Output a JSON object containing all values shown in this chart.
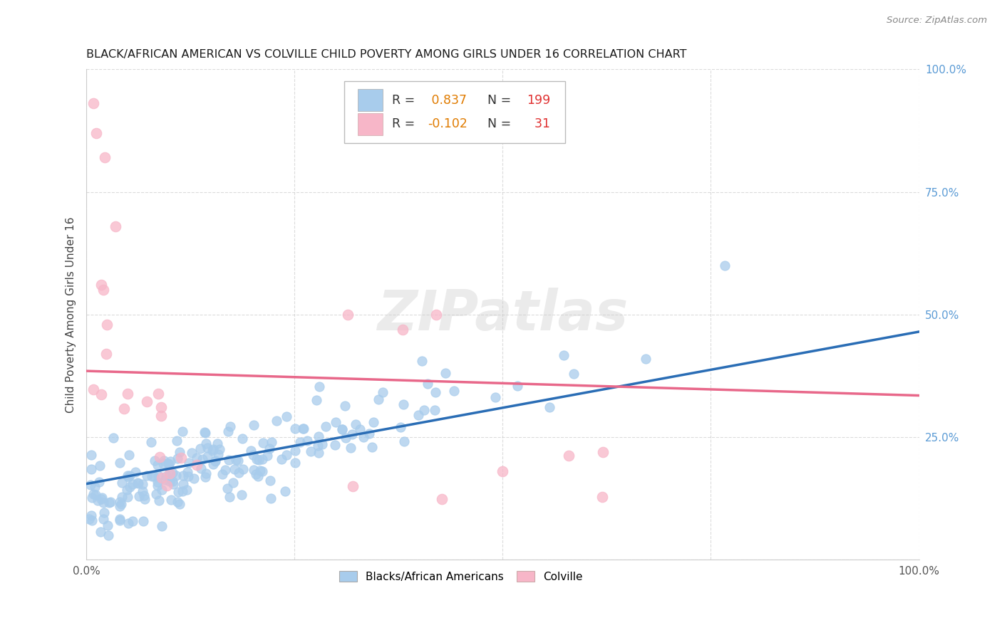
{
  "title": "BLACK/AFRICAN AMERICAN VS COLVILLE CHILD POVERTY AMONG GIRLS UNDER 16 CORRELATION CHART",
  "source": "Source: ZipAtlas.com",
  "ylabel": "Child Poverty Among Girls Under 16",
  "xlim": [
    0,
    1
  ],
  "ylim": [
    0,
    1
  ],
  "blue_R": 0.837,
  "blue_N": 199,
  "pink_R": -0.102,
  "pink_N": 31,
  "blue_color": "#a8ccec",
  "pink_color": "#f7b6c8",
  "blue_line_color": "#2a6db5",
  "pink_line_color": "#e8688a",
  "legend_label_blue": "Blacks/African Americans",
  "legend_label_pink": "Colville",
  "watermark": "ZIPatlas",
  "background_color": "#ffffff",
  "grid_color": "#cccccc",
  "ytick_color": "#5b9bd5",
  "xtick_color": "#555555",
  "blue_line_start_y": 0.155,
  "blue_line_end_y": 0.465,
  "pink_line_start_y": 0.385,
  "pink_line_end_y": 0.335
}
